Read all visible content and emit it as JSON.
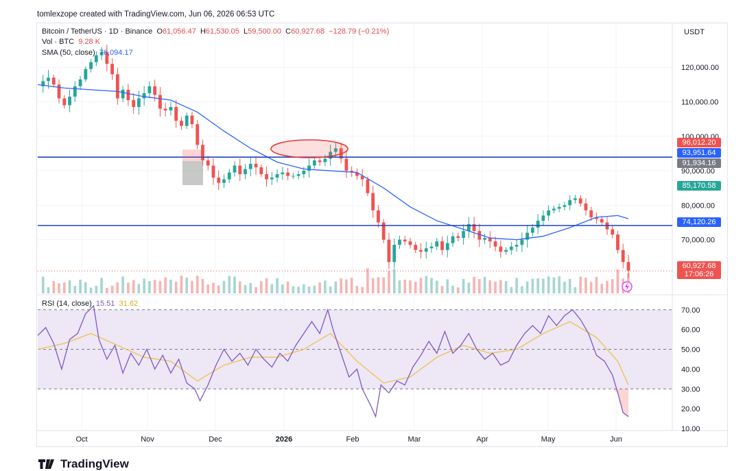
{
  "credit": "tomlexzope created with TradingView.com, Jun 06, 2026 06:53 UTC",
  "brand": "TradingView",
  "header": {
    "symbol": "Bitcoin / TetherUS · 1D · Binance",
    "open_label": "O",
    "open": "61,056.47",
    "high_label": "H",
    "high": "61,530.05",
    "low_label": "L",
    "low": "59,500.00",
    "close_label": "C",
    "close": "60,927.68",
    "change": "−128.79 (−0.21%)",
    "vol_label": "Vol · BTC",
    "vol": "9.28 K",
    "sma_label": "SMA (50, close)",
    "sma": "76,094.17",
    "currency": "USDT"
  },
  "rsi_legend": {
    "label": "RSI (14, close)",
    "rsi": "15.51",
    "ma": "31.62"
  },
  "colors": {
    "up": "#26a69a",
    "down": "#ef5350",
    "sma": "#2962ff",
    "hline": "#1e40c8",
    "rsi": "#7e57c2",
    "rsi_ma": "#f0c14b",
    "band": "#ede7f6"
  },
  "tags": [
    {
      "text": "96,012.20",
      "color": "#ef5350",
      "price": 96012.2
    },
    {
      "text": "93,951.64",
      "color": "#2962ff",
      "price": 93951.64
    },
    {
      "text": "91,934.16",
      "color": "#787b86",
      "price": 91934.16
    },
    {
      "text": "85,170.58",
      "color": "#26a69a",
      "price": 85170.58
    },
    {
      "text": "74,120.26",
      "color": "#2962ff",
      "price": 74120.26
    },
    {
      "text": "60,927.68",
      "color": "#ef5350",
      "price": 60927.68
    },
    {
      "text": "17:06:26",
      "color": "#ef5350",
      "price": null
    }
  ],
  "chart_data": [
    {
      "type": "candlestick",
      "title": "Bitcoin / TetherUS · 1D · Binance",
      "x_ticks": [
        "Oct",
        "Nov",
        "Dec",
        "2026",
        "Feb",
        "Mar",
        "Apr",
        "May",
        "Jun"
      ],
      "y_ticks": [
        "120,000.00",
        "110,000.00",
        "100,000.00",
        "90,000.00",
        "80,000.00",
        "70,000.00"
      ],
      "ylim": [
        55000,
        128000
      ],
      "horizontal_lines": [
        93951.64,
        74120.26
      ],
      "close_series": [
        [
          0,
          114500
        ],
        [
          4,
          116000
        ],
        [
          8,
          117000
        ],
        [
          12,
          115000
        ],
        [
          16,
          111000
        ],
        [
          20,
          109000
        ],
        [
          24,
          111500
        ],
        [
          28,
          114500
        ],
        [
          32,
          116500
        ],
        [
          36,
          119500
        ],
        [
          40,
          121500
        ],
        [
          44,
          123500
        ],
        [
          48,
          124500
        ],
        [
          52,
          121000
        ],
        [
          56,
          118000
        ],
        [
          60,
          111000
        ],
        [
          64,
          113500
        ],
        [
          68,
          110500
        ],
        [
          72,
          108500
        ],
        [
          76,
          111000
        ],
        [
          80,
          112500
        ],
        [
          84,
          114500
        ],
        [
          88,
          112000
        ],
        [
          92,
          108000
        ],
        [
          96,
          107500
        ],
        [
          100,
          108500
        ],
        [
          104,
          104500
        ],
        [
          108,
          103000
        ],
        [
          112,
          106000
        ],
        [
          116,
          103500
        ],
        [
          120,
          97500
        ],
        [
          124,
          93000
        ],
        [
          128,
          91500
        ],
        [
          132,
          88000
        ],
        [
          136,
          86500
        ],
        [
          140,
          87500
        ],
        [
          144,
          89500
        ],
        [
          148,
          91500
        ],
        [
          152,
          89000
        ],
        [
          156,
          90500
        ],
        [
          160,
          92000
        ],
        [
          164,
          91000
        ],
        [
          168,
          89000
        ],
        [
          172,
          87500
        ],
        [
          176,
          88000
        ],
        [
          180,
          89000
        ],
        [
          184,
          89500
        ],
        [
          188,
          88500
        ],
        [
          192,
          88500
        ],
        [
          196,
          89000
        ],
        [
          200,
          90000
        ],
        [
          204,
          91500
        ],
        [
          208,
          93000
        ],
        [
          212,
          92500
        ],
        [
          216,
          93500
        ],
        [
          220,
          95500
        ],
        [
          224,
          96500
        ],
        [
          228,
          93500
        ],
        [
          232,
          90000
        ],
        [
          236,
          89500
        ],
        [
          240,
          88500
        ],
        [
          244,
          87500
        ],
        [
          248,
          83500
        ],
        [
          252,
          78500
        ],
        [
          256,
          75000
        ],
        [
          260,
          70000
        ],
        [
          264,
          63500
        ],
        [
          268,
          68500
        ],
        [
          272,
          70000
        ],
        [
          276,
          69500
        ],
        [
          280,
          68500
        ],
        [
          284,
          67000
        ],
        [
          288,
          66500
        ],
        [
          292,
          67500
        ],
        [
          296,
          68000
        ],
        [
          300,
          69500
        ],
        [
          304,
          67000
        ],
        [
          308,
          69000
        ],
        [
          312,
          71000
        ],
        [
          316,
          70500
        ],
        [
          320,
          72500
        ],
        [
          324,
          74500
        ],
        [
          328,
          72500
        ],
        [
          332,
          70000
        ],
        [
          336,
          70500
        ],
        [
          340,
          69500
        ],
        [
          344,
          68000
        ],
        [
          348,
          66500
        ],
        [
          352,
          67000
        ],
        [
          356,
          68000
        ],
        [
          360,
          68500
        ],
        [
          364,
          70000
        ],
        [
          368,
          72000
        ],
        [
          372,
          73500
        ],
        [
          376,
          75500
        ],
        [
          380,
          77000
        ],
        [
          384,
          78500
        ],
        [
          388,
          79000
        ],
        [
          392,
          79500
        ],
        [
          396,
          80000
        ],
        [
          400,
          81500
        ],
        [
          404,
          82000
        ],
        [
          408,
          80500
        ],
        [
          412,
          78500
        ],
        [
          416,
          76500
        ],
        [
          420,
          76000
        ],
        [
          424,
          75000
        ],
        [
          428,
          73000
        ],
        [
          432,
          71500
        ],
        [
          436,
          67000
        ],
        [
          440,
          63500
        ],
        [
          444,
          61000
        ]
      ],
      "sma_50": [
        [
          0,
          115000
        ],
        [
          20,
          114000
        ],
        [
          40,
          113500
        ],
        [
          60,
          113000
        ],
        [
          80,
          111500
        ],
        [
          100,
          110500
        ],
        [
          120,
          107000
        ],
        [
          140,
          101500
        ],
        [
          160,
          96500
        ],
        [
          180,
          92500
        ],
        [
          200,
          90500
        ],
        [
          220,
          90000
        ],
        [
          240,
          89500
        ],
        [
          260,
          85000
        ],
        [
          280,
          79500
        ],
        [
          300,
          75500
        ],
        [
          320,
          73000
        ],
        [
          340,
          70500
        ],
        [
          360,
          70000
        ],
        [
          380,
          71000
        ],
        [
          400,
          73500
        ],
        [
          420,
          76500
        ],
        [
          436,
          77000
        ],
        [
          444,
          76094
        ]
      ]
    },
    {
      "type": "line",
      "title": "RSI (14, close)",
      "y_ticks": [
        "70.00",
        "60.00",
        "50.00",
        "40.00",
        "30.00",
        "20.00",
        "10.00"
      ],
      "ylim": [
        10,
        72
      ],
      "bands": [
        70,
        50,
        30
      ],
      "rsi": [
        [
          0,
          57
        ],
        [
          6,
          61
        ],
        [
          12,
          53
        ],
        [
          18,
          40
        ],
        [
          24,
          55
        ],
        [
          30,
          58
        ],
        [
          36,
          68
        ],
        [
          42,
          72
        ],
        [
          46,
          55
        ],
        [
          52,
          45
        ],
        [
          58,
          52
        ],
        [
          64,
          38
        ],
        [
          70,
          48
        ],
        [
          76,
          42
        ],
        [
          82,
          50
        ],
        [
          88,
          40
        ],
        [
          94,
          47
        ],
        [
          100,
          38
        ],
        [
          106,
          45
        ],
        [
          112,
          33
        ],
        [
          118,
          30
        ],
        [
          122,
          24
        ],
        [
          128,
          32
        ],
        [
          134,
          42
        ],
        [
          140,
          50
        ],
        [
          146,
          44
        ],
        [
          152,
          48
        ],
        [
          158,
          42
        ],
        [
          164,
          50
        ],
        [
          170,
          45
        ],
        [
          176,
          41
        ],
        [
          182,
          48
        ],
        [
          188,
          44
        ],
        [
          194,
          52
        ],
        [
          200,
          58
        ],
        [
          206,
          64
        ],
        [
          212,
          58
        ],
        [
          218,
          70
        ],
        [
          222,
          60
        ],
        [
          228,
          48
        ],
        [
          234,
          36
        ],
        [
          240,
          40
        ],
        [
          244,
          30
        ],
        [
          250,
          22
        ],
        [
          254,
          16
        ],
        [
          258,
          32
        ],
        [
          264,
          28
        ],
        [
          270,
          34
        ],
        [
          276,
          32
        ],
        [
          282,
          41
        ],
        [
          288,
          47
        ],
        [
          294,
          54
        ],
        [
          300,
          48
        ],
        [
          306,
          59
        ],
        [
          312,
          48
        ],
        [
          318,
          52
        ],
        [
          324,
          58
        ],
        [
          330,
          50
        ],
        [
          336,
          45
        ],
        [
          342,
          48
        ],
        [
          348,
          42
        ],
        [
          354,
          44
        ],
        [
          360,
          52
        ],
        [
          366,
          58
        ],
        [
          372,
          62
        ],
        [
          378,
          58
        ],
        [
          384,
          67
        ],
        [
          390,
          62
        ],
        [
          396,
          67
        ],
        [
          402,
          70
        ],
        [
          408,
          65
        ],
        [
          414,
          58
        ],
        [
          420,
          47
        ],
        [
          426,
          44
        ],
        [
          432,
          37
        ],
        [
          436,
          28
        ],
        [
          440,
          18
        ],
        [
          444,
          16
        ]
      ],
      "rsi_ma": [
        [
          0,
          50
        ],
        [
          20,
          53
        ],
        [
          40,
          58
        ],
        [
          60,
          52
        ],
        [
          80,
          46
        ],
        [
          100,
          44
        ],
        [
          120,
          34
        ],
        [
          140,
          42
        ],
        [
          160,
          46
        ],
        [
          180,
          46
        ],
        [
          200,
          50
        ],
        [
          220,
          58
        ],
        [
          240,
          44
        ],
        [
          260,
          33
        ],
        [
          280,
          36
        ],
        [
          300,
          46
        ],
        [
          320,
          52
        ],
        [
          340,
          48
        ],
        [
          360,
          50
        ],
        [
          380,
          58
        ],
        [
          400,
          64
        ],
        [
          420,
          56
        ],
        [
          436,
          44
        ],
        [
          444,
          32
        ]
      ]
    }
  ]
}
